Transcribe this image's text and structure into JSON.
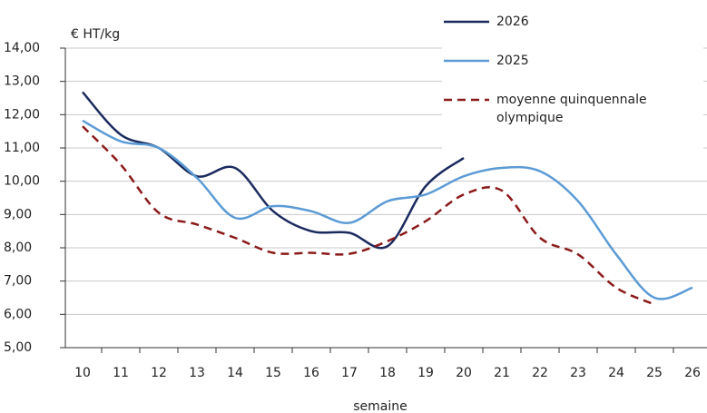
{
  "chart_data": {
    "type": "line",
    "y_label": "€ HT/kg",
    "x_label": "semaine",
    "categories": [
      "10",
      "11",
      "12",
      "13",
      "14",
      "15",
      "16",
      "17",
      "18",
      "19",
      "20",
      "21",
      "22",
      "23",
      "24",
      "25",
      "26"
    ],
    "series": [
      {
        "name": "2026",
        "color": "#1b2a5e",
        "dash": false,
        "values": [
          12.68,
          11.4,
          11.0,
          10.15,
          10.4,
          9.1,
          8.5,
          8.45,
          8.05,
          9.85,
          10.7,
          null,
          null,
          null,
          null,
          null,
          null
        ]
      },
      {
        "name": "2025",
        "color": "#5b9bd5",
        "dash": false,
        "values": [
          11.82,
          11.2,
          11.0,
          10.1,
          8.9,
          9.25,
          9.1,
          8.75,
          9.4,
          9.6,
          10.15,
          10.4,
          10.3,
          9.4,
          7.8,
          6.5,
          6.8
        ]
      },
      {
        "name": "moyenne quinquennale olympique",
        "color": "#8b1a1a",
        "dash": true,
        "values": [
          11.65,
          10.5,
          9.05,
          8.7,
          8.3,
          7.85,
          7.85,
          7.82,
          8.2,
          8.8,
          9.6,
          9.72,
          8.3,
          7.8,
          6.8,
          6.3,
          null
        ]
      }
    ],
    "ylim": [
      5,
      14
    ],
    "yticks": [
      {
        "value": 5,
        "label": "5,00"
      },
      {
        "value": 6,
        "label": "6,00"
      },
      {
        "value": 7,
        "label": "7,00"
      },
      {
        "value": 8,
        "label": "8,00"
      },
      {
        "value": 9,
        "label": "9,00"
      },
      {
        "value": 10,
        "label": "10,00"
      },
      {
        "value": 11,
        "label": "11,00"
      },
      {
        "value": 12,
        "label": "12,00"
      },
      {
        "value": 13,
        "label": "13,00"
      },
      {
        "value": 14,
        "label": "14,00"
      }
    ],
    "grid": true,
    "legend": "upper right"
  }
}
